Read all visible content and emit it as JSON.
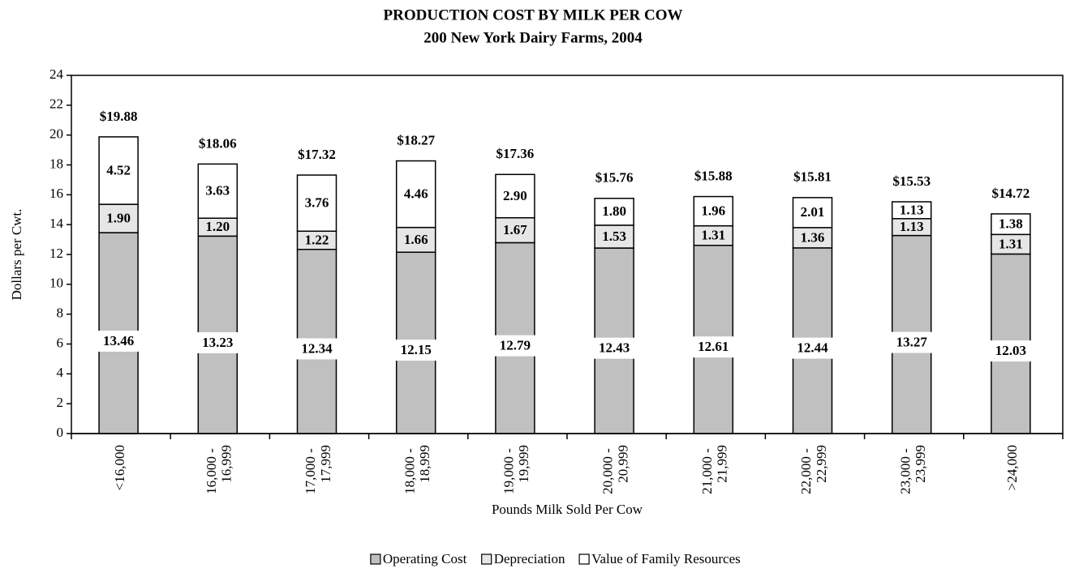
{
  "chart_data": {
    "type": "stacked_bar",
    "title": "PRODUCTION COST BY MILK PER COW",
    "subtitle": "200 New York Dairy Farms, 2004",
    "x_label": "Pounds Milk Sold Per Cow",
    "y_label": "Dollars per Cwt.",
    "categories": [
      "<16,000",
      "16,000 - 16,999",
      "17,000 - 17,999",
      "18,000 - 18,999",
      "19,000 - 19,999",
      "20,000 - 20,999",
      "21,000 - 21,999",
      "22,000 - 22,999",
      "23,000 - 23,999",
      ">24,000"
    ],
    "series": [
      {
        "name": "Operating Cost",
        "color": "#c0c0c0",
        "values": [
          13.46,
          13.23,
          12.34,
          12.15,
          12.79,
          12.43,
          12.61,
          12.44,
          13.27,
          12.03
        ],
        "value_labels": [
          "13.46",
          "13.23",
          "12.34",
          "12.15",
          "12.79",
          "12.43",
          "12.61",
          "12.44",
          "13.27",
          "12.03"
        ]
      },
      {
        "name": "Depreciation",
        "color": "#e6e6e6",
        "values": [
          1.9,
          1.2,
          1.22,
          1.66,
          1.67,
          1.53,
          1.31,
          1.36,
          1.13,
          1.31
        ],
        "value_labels": [
          "1.90",
          "1.20",
          "1.22",
          "1.66",
          "1.67",
          "1.53",
          "1.31",
          "1.36",
          "1.13",
          "1.31"
        ]
      },
      {
        "name": "Value of Family Resources",
        "color": "#ffffff",
        "values": [
          4.52,
          3.63,
          3.76,
          4.46,
          2.9,
          1.8,
          1.96,
          2.01,
          1.13,
          1.38
        ],
        "value_labels": [
          "4.52",
          "3.63",
          "3.76",
          "4.46",
          "2.90",
          "1.80",
          "1.96",
          "2.01",
          "1.13",
          "1.38"
        ]
      }
    ],
    "totals": {
      "values": [
        19.88,
        18.06,
        17.32,
        18.27,
        17.36,
        15.76,
        15.88,
        15.81,
        15.53,
        14.72
      ],
      "value_labels": [
        "$19.88",
        "$18.06",
        "$17.32",
        "$18.27",
        "$17.36",
        "$15.76",
        "$15.88",
        "$15.81",
        "$15.53",
        "$14.72"
      ]
    },
    "ylim": [
      0,
      24
    ],
    "yticks": [
      0,
      2,
      4,
      6,
      8,
      10,
      12,
      14,
      16,
      18,
      20,
      22,
      24
    ],
    "legend": "bottom"
  }
}
